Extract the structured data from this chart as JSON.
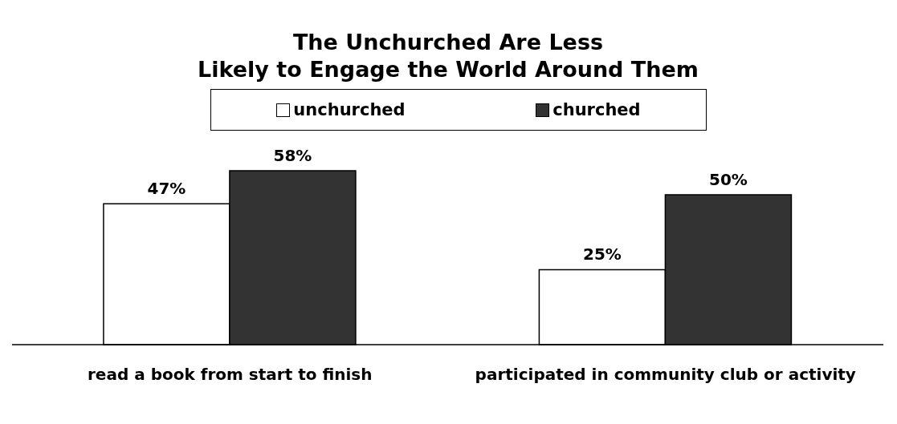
{
  "chart_data": {
    "type": "bar",
    "title": "The Unchurched Are Less\nLikely to Engage the World Around Them",
    "categories": [
      "read a book from start to finish",
      "participated in community club or activity"
    ],
    "series": [
      {
        "name": "unchurched",
        "color": "#ffffff",
        "values": [
          47,
          25
        ],
        "value_labels": [
          "47%",
          "25%"
        ]
      },
      {
        "name": "churched",
        "color": "#333333",
        "values": [
          58,
          50
        ],
        "value_labels": [
          "58%",
          "50%"
        ]
      }
    ],
    "legend": "top",
    "grid": false,
    "tick_labels": "x"
  }
}
